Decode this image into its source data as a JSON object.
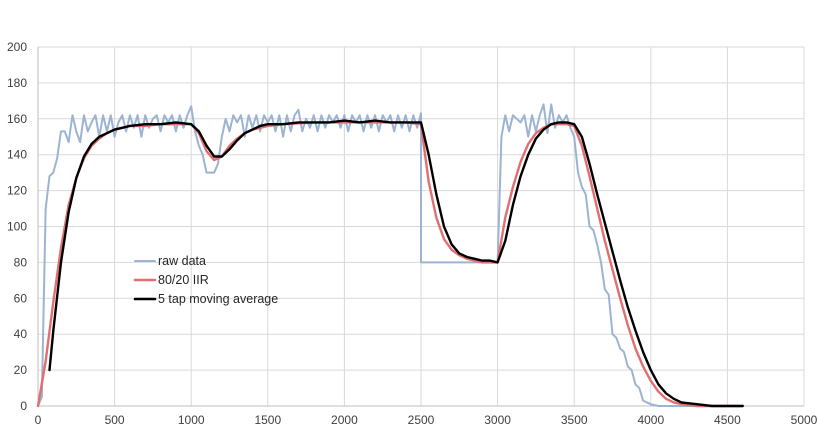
{
  "chart_data": {
    "type": "line",
    "title": "",
    "xlabel": "",
    "ylabel": "",
    "xlim": [
      0,
      5000
    ],
    "ylim": [
      0,
      200
    ],
    "xticks": [
      0,
      500,
      1000,
      1500,
      2000,
      2500,
      3000,
      3500,
      4000,
      4500,
      5000
    ],
    "yticks": [
      0,
      20,
      40,
      60,
      80,
      100,
      120,
      140,
      160,
      180,
      200
    ],
    "grid": true,
    "legend_position": "left-center",
    "series": [
      {
        "name": "raw data",
        "color": "#9DB3D3",
        "points": [
          [
            0,
            0
          ],
          [
            25,
            5
          ],
          [
            50,
            110
          ],
          [
            75,
            128
          ],
          [
            100,
            130
          ],
          [
            125,
            138
          ],
          [
            150,
            153
          ],
          [
            175,
            153
          ],
          [
            200,
            147
          ],
          [
            225,
            162
          ],
          [
            250,
            153
          ],
          [
            275,
            147
          ],
          [
            300,
            162
          ],
          [
            325,
            153
          ],
          [
            350,
            158
          ],
          [
            375,
            162
          ],
          [
            400,
            150
          ],
          [
            425,
            162
          ],
          [
            450,
            153
          ],
          [
            475,
            162
          ],
          [
            500,
            150
          ],
          [
            525,
            158
          ],
          [
            550,
            162
          ],
          [
            575,
            153
          ],
          [
            600,
            162
          ],
          [
            625,
            155
          ],
          [
            650,
            162
          ],
          [
            675,
            150
          ],
          [
            700,
            162
          ],
          [
            725,
            155
          ],
          [
            750,
            160
          ],
          [
            775,
            162
          ],
          [
            800,
            153
          ],
          [
            825,
            162
          ],
          [
            850,
            158
          ],
          [
            875,
            162
          ],
          [
            900,
            153
          ],
          [
            925,
            162
          ],
          [
            950,
            155
          ],
          [
            975,
            162
          ],
          [
            1000,
            167
          ],
          [
            1025,
            153
          ],
          [
            1050,
            145
          ],
          [
            1075,
            140
          ],
          [
            1100,
            130
          ],
          [
            1125,
            130
          ],
          [
            1150,
            130
          ],
          [
            1175,
            135
          ],
          [
            1200,
            150
          ],
          [
            1225,
            160
          ],
          [
            1250,
            153
          ],
          [
            1275,
            162
          ],
          [
            1300,
            158
          ],
          [
            1325,
            162
          ],
          [
            1350,
            150
          ],
          [
            1375,
            162
          ],
          [
            1400,
            155
          ],
          [
            1425,
            162
          ],
          [
            1450,
            153
          ],
          [
            1475,
            162
          ],
          [
            1500,
            158
          ],
          [
            1525,
            162
          ],
          [
            1550,
            153
          ],
          [
            1575,
            162
          ],
          [
            1600,
            150
          ],
          [
            1625,
            162
          ],
          [
            1650,
            153
          ],
          [
            1675,
            162
          ],
          [
            1700,
            165
          ],
          [
            1725,
            153
          ],
          [
            1750,
            160
          ],
          [
            1775,
            155
          ],
          [
            1800,
            162
          ],
          [
            1825,
            153
          ],
          [
            1850,
            162
          ],
          [
            1875,
            155
          ],
          [
            1900,
            162
          ],
          [
            1925,
            158
          ],
          [
            1950,
            162
          ],
          [
            1975,
            155
          ],
          [
            2000,
            162
          ],
          [
            2025,
            153
          ],
          [
            2050,
            162
          ],
          [
            2075,
            158
          ],
          [
            2100,
            162
          ],
          [
            2125,
            153
          ],
          [
            2150,
            162
          ],
          [
            2175,
            155
          ],
          [
            2200,
            162
          ],
          [
            2225,
            153
          ],
          [
            2250,
            162
          ],
          [
            2275,
            158
          ],
          [
            2300,
            162
          ],
          [
            2325,
            153
          ],
          [
            2350,
            162
          ],
          [
            2375,
            155
          ],
          [
            2400,
            162
          ],
          [
            2425,
            153
          ],
          [
            2450,
            162
          ],
          [
            2475,
            155
          ],
          [
            2500,
            163
          ],
          [
            2500,
            80
          ],
          [
            2550,
            80
          ],
          [
            2600,
            80
          ],
          [
            2650,
            80
          ],
          [
            2700,
            80
          ],
          [
            2750,
            80
          ],
          [
            2800,
            80
          ],
          [
            2850,
            80
          ],
          [
            2900,
            80
          ],
          [
            2950,
            80
          ],
          [
            3000,
            80
          ],
          [
            3025,
            150
          ],
          [
            3050,
            162
          ],
          [
            3075,
            153
          ],
          [
            3100,
            162
          ],
          [
            3125,
            160
          ],
          [
            3150,
            158
          ],
          [
            3175,
            162
          ],
          [
            3200,
            150
          ],
          [
            3225,
            162
          ],
          [
            3250,
            153
          ],
          [
            3275,
            162
          ],
          [
            3300,
            168
          ],
          [
            3325,
            152
          ],
          [
            3350,
            168
          ],
          [
            3375,
            155
          ],
          [
            3400,
            162
          ],
          [
            3425,
            158
          ],
          [
            3450,
            162
          ],
          [
            3475,
            155
          ],
          [
            3500,
            150
          ],
          [
            3525,
            130
          ],
          [
            3550,
            122
          ],
          [
            3575,
            118
          ],
          [
            3600,
            100
          ],
          [
            3625,
            98
          ],
          [
            3650,
            90
          ],
          [
            3675,
            80
          ],
          [
            3700,
            65
          ],
          [
            3725,
            62
          ],
          [
            3750,
            40
          ],
          [
            3775,
            38
          ],
          [
            3800,
            32
          ],
          [
            3825,
            30
          ],
          [
            3850,
            22
          ],
          [
            3875,
            20
          ],
          [
            3900,
            12
          ],
          [
            3925,
            10
          ],
          [
            3950,
            3
          ],
          [
            3975,
            2
          ],
          [
            4000,
            1
          ],
          [
            4050,
            0
          ],
          [
            4600,
            0
          ]
        ]
      },
      {
        "name": "80/20 IIR",
        "color": "#E26F70",
        "points": [
          [
            0,
            0
          ],
          [
            50,
            25
          ],
          [
            100,
            58
          ],
          [
            150,
            88
          ],
          [
            200,
            112
          ],
          [
            250,
            127
          ],
          [
            300,
            138
          ],
          [
            350,
            145
          ],
          [
            400,
            149
          ],
          [
            450,
            152
          ],
          [
            500,
            154
          ],
          [
            550,
            155
          ],
          [
            600,
            156
          ],
          [
            700,
            156
          ],
          [
            800,
            157
          ],
          [
            900,
            157
          ],
          [
            1000,
            157
          ],
          [
            1050,
            152
          ],
          [
            1100,
            142
          ],
          [
            1150,
            137
          ],
          [
            1200,
            139
          ],
          [
            1250,
            145
          ],
          [
            1300,
            149
          ],
          [
            1350,
            152
          ],
          [
            1400,
            154
          ],
          [
            1500,
            156
          ],
          [
            1600,
            157
          ],
          [
            1800,
            158
          ],
          [
            2000,
            158
          ],
          [
            2200,
            158
          ],
          [
            2400,
            158
          ],
          [
            2500,
            157
          ],
          [
            2550,
            125
          ],
          [
            2600,
            105
          ],
          [
            2650,
            93
          ],
          [
            2700,
            87
          ],
          [
            2750,
            84
          ],
          [
            2800,
            82
          ],
          [
            2850,
            81
          ],
          [
            2900,
            80
          ],
          [
            2950,
            80
          ],
          [
            3000,
            80
          ],
          [
            3050,
            105
          ],
          [
            3100,
            122
          ],
          [
            3150,
            136
          ],
          [
            3200,
            146
          ],
          [
            3250,
            152
          ],
          [
            3300,
            155
          ],
          [
            3350,
            157
          ],
          [
            3400,
            157
          ],
          [
            3450,
            157
          ],
          [
            3500,
            156
          ],
          [
            3550,
            145
          ],
          [
            3600,
            128
          ],
          [
            3650,
            110
          ],
          [
            3700,
            92
          ],
          [
            3750,
            76
          ],
          [
            3800,
            60
          ],
          [
            3850,
            45
          ],
          [
            3900,
            32
          ],
          [
            3950,
            22
          ],
          [
            4000,
            14
          ],
          [
            4050,
            8
          ],
          [
            4100,
            4
          ],
          [
            4150,
            2
          ],
          [
            4200,
            1
          ],
          [
            4300,
            0
          ],
          [
            4600,
            0
          ]
        ]
      },
      {
        "name": "5 tap moving average",
        "color": "#000000",
        "points": [
          [
            75,
            20
          ],
          [
            100,
            42
          ],
          [
            150,
            80
          ],
          [
            200,
            108
          ],
          [
            250,
            127
          ],
          [
            300,
            139
          ],
          [
            350,
            146
          ],
          [
            400,
            150
          ],
          [
            450,
            152
          ],
          [
            500,
            154
          ],
          [
            550,
            155
          ],
          [
            600,
            156
          ],
          [
            700,
            157
          ],
          [
            800,
            157
          ],
          [
            900,
            158
          ],
          [
            1000,
            157
          ],
          [
            1050,
            153
          ],
          [
            1100,
            145
          ],
          [
            1150,
            139
          ],
          [
            1200,
            139
          ],
          [
            1250,
            143
          ],
          [
            1300,
            148
          ],
          [
            1350,
            152
          ],
          [
            1400,
            154
          ],
          [
            1450,
            156
          ],
          [
            1500,
            157
          ],
          [
            1600,
            157
          ],
          [
            1700,
            158
          ],
          [
            1800,
            158
          ],
          [
            1900,
            158
          ],
          [
            2000,
            159
          ],
          [
            2100,
            158
          ],
          [
            2200,
            159
          ],
          [
            2300,
            158
          ],
          [
            2400,
            158
          ],
          [
            2500,
            158
          ],
          [
            2550,
            140
          ],
          [
            2600,
            118
          ],
          [
            2650,
            100
          ],
          [
            2700,
            90
          ],
          [
            2750,
            85
          ],
          [
            2800,
            83
          ],
          [
            2850,
            82
          ],
          [
            2900,
            81
          ],
          [
            2950,
            81
          ],
          [
            3000,
            80
          ],
          [
            3050,
            92
          ],
          [
            3100,
            112
          ],
          [
            3150,
            128
          ],
          [
            3200,
            140
          ],
          [
            3250,
            149
          ],
          [
            3300,
            154
          ],
          [
            3350,
            157
          ],
          [
            3400,
            158
          ],
          [
            3450,
            158
          ],
          [
            3500,
            157
          ],
          [
            3550,
            150
          ],
          [
            3600,
            135
          ],
          [
            3650,
            118
          ],
          [
            3700,
            102
          ],
          [
            3750,
            86
          ],
          [
            3800,
            70
          ],
          [
            3850,
            55
          ],
          [
            3900,
            42
          ],
          [
            3950,
            30
          ],
          [
            4000,
            20
          ],
          [
            4050,
            12
          ],
          [
            4100,
            7
          ],
          [
            4150,
            4
          ],
          [
            4200,
            2
          ],
          [
            4300,
            1
          ],
          [
            4400,
            0
          ],
          [
            4600,
            0
          ]
        ]
      }
    ]
  }
}
